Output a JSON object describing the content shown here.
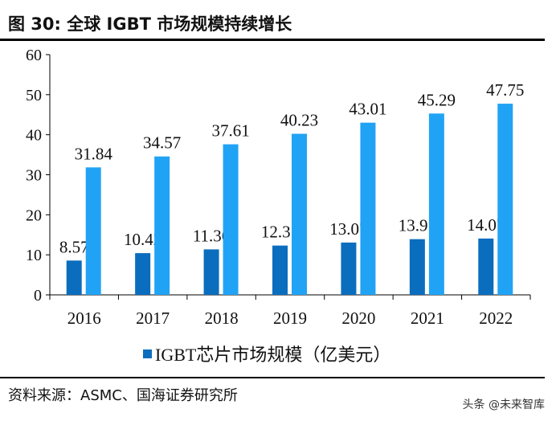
{
  "header": {
    "title": "图 30:  全球 IGBT 市场规模持续增长"
  },
  "chart_data": {
    "type": "bar",
    "title": "全球 IGBT 市场规模持续增长",
    "xlabel": "",
    "ylabel": "",
    "ylim": [
      0,
      60
    ],
    "yticks": [
      0,
      10,
      20,
      30,
      40,
      50,
      60
    ],
    "categories": [
      "2016",
      "2017",
      "2018",
      "2019",
      "2020",
      "2021",
      "2022"
    ],
    "series": [
      {
        "name": "IGBT芯片市场规模（亿美元）",
        "color": "#0B6DBE",
        "values": [
          8.57,
          10.42,
          11.36,
          12.31,
          13.07,
          13.91,
          14.07
        ]
      },
      {
        "name": "",
        "color": "#21A3F5",
        "values": [
          31.84,
          34.57,
          37.61,
          40.23,
          43.01,
          45.29,
          47.75
        ]
      }
    ],
    "legend": {
      "label": "IGBT芯片市场规模（亿美元）",
      "placement": "bottom"
    },
    "grid": false
  },
  "footer": {
    "source": "资料来源：ASMC、国海证券研究所",
    "watermark": "头条 @未来智库"
  }
}
